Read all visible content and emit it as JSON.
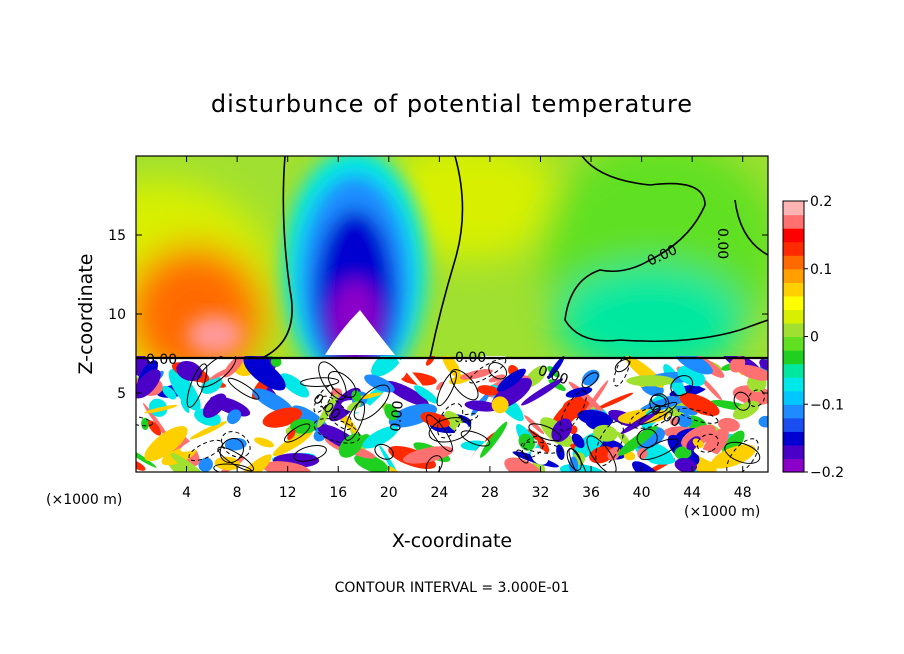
{
  "chart_data": {
    "type": "heatmap",
    "title": "disturbunce of potential temperature",
    "xlabel": "X-coordinate",
    "ylabel": "Z-coordinate",
    "x_unit": "(×1000 m)",
    "y_unit": "(×1000 m)",
    "xlim": [
      0,
      50
    ],
    "ylim": [
      0,
      20
    ],
    "x_ticks": [
      4,
      8,
      12,
      16,
      20,
      24,
      28,
      32,
      36,
      40,
      44,
      48
    ],
    "y_ticks": [
      5,
      10,
      15
    ],
    "colorbar": {
      "min": -0.2,
      "max": 0.2,
      "ticks": [
        0.2,
        0.1,
        0,
        -0.1,
        -0.2
      ],
      "tick_labels": [
        "0.2",
        "0.1",
        "0",
        "−0.1",
        "−0.2"
      ],
      "colors": [
        "#8a00c8",
        "#4b00c8",
        "#0000d0",
        "#1a4ef0",
        "#1e8cff",
        "#00c8ff",
        "#00e8e8",
        "#00e8a0",
        "#20d020",
        "#60e020",
        "#a0e030",
        "#d8f000",
        "#ffff00",
        "#ffd000",
        "#ffa000",
        "#ff6a00",
        "#ff2a00",
        "#ff0000",
        "#ff7070",
        "#ffb4b4"
      ]
    },
    "contour_interval": "CONTOUR INTERVAL = 3.000E-01",
    "contour_labels": [
      "0.00",
      "0.00",
      "0.00",
      "0.00",
      "0.00",
      "0.00",
      "0.00",
      "0.00"
    ],
    "features": [
      {
        "x": 6,
        "z": 11,
        "value": 0.12
      },
      {
        "x": 17.5,
        "z": 13.5,
        "value": -0.15
      },
      {
        "x": 40,
        "z": 11,
        "value": -0.06
      },
      {
        "x": 30,
        "z": 16,
        "value": 0.03
      }
    ]
  }
}
